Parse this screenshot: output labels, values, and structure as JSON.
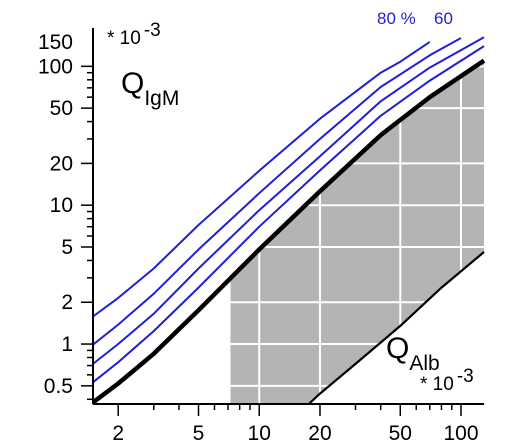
{
  "chart_data": {
    "type": "line",
    "title": "",
    "x_axis": {
      "scale": "log",
      "range": [
        1.5,
        130
      ],
      "tick_labels": [
        {
          "value": 2,
          "label": "2"
        },
        {
          "value": 5,
          "label": "5"
        },
        {
          "value": 10,
          "label": "10"
        },
        {
          "value": 20,
          "label": "20"
        },
        {
          "value": 50,
          "label": "50"
        },
        {
          "value": 100,
          "label": "100"
        }
      ],
      "variable": {
        "main": "Q",
        "sub": "Alb"
      },
      "multiplier": {
        "base": "* 10",
        "exp": "-3"
      }
    },
    "y_axis": {
      "scale": "log",
      "range": [
        0.37,
        160
      ],
      "tick_labels": [
        {
          "value": 0.5,
          "label": "0.5"
        },
        {
          "value": 1,
          "label": "1"
        },
        {
          "value": 2,
          "label": "2"
        },
        {
          "value": 5,
          "label": "5"
        },
        {
          "value": 10,
          "label": "10"
        },
        {
          "value": 20,
          "label": "20"
        },
        {
          "value": 50,
          "label": "50"
        },
        {
          "value": 100,
          "label": "100"
        },
        {
          "value": 150,
          "label": "150"
        }
      ],
      "variable": {
        "main": "Q",
        "sub": "IgM"
      },
      "multiplier": {
        "base": "* 10",
        "exp": "-3"
      }
    },
    "grid": "white grid inside shaded region",
    "colors": {
      "reference_curves": "#1f1fd6",
      "upper_limit": "#000000",
      "lower_limit": "#000000",
      "shaded_region": "#b4b4b4",
      "grid_lines": "#ffffff"
    },
    "series": [
      {
        "name": "80 %",
        "color": "#1f1fd6",
        "points": [
          [
            1.5,
            1.58
          ],
          [
            2,
            2.15
          ],
          [
            3,
            3.5
          ],
          [
            5,
            7.2
          ],
          [
            10,
            17.7
          ],
          [
            20,
            42
          ],
          [
            40,
            90
          ],
          [
            50,
            108
          ],
          [
            70,
            150
          ]
        ]
      },
      {
        "name": "60",
        "color": "#1f1fd6",
        "points": [
          [
            1.5,
            0.99
          ],
          [
            2,
            1.38
          ],
          [
            3,
            2.3
          ],
          [
            5,
            4.8
          ],
          [
            10,
            12.2
          ],
          [
            20,
            30
          ],
          [
            40,
            71
          ],
          [
            70,
            120
          ],
          [
            100,
            160
          ]
        ]
      },
      {
        "color": "#1f1fd6",
        "points": [
          [
            1.5,
            0.72
          ],
          [
            2,
            1.0
          ],
          [
            3,
            1.65
          ],
          [
            5,
            3.5
          ],
          [
            10,
            9.2
          ],
          [
            20,
            22.5
          ],
          [
            40,
            56
          ],
          [
            70,
            98
          ],
          [
            130,
            162
          ]
        ]
      },
      {
        "color": "#1f1fd6",
        "points": [
          [
            1.5,
            0.53
          ],
          [
            2,
            0.74
          ],
          [
            3,
            1.24
          ],
          [
            5,
            2.55
          ],
          [
            10,
            7.0
          ],
          [
            20,
            17.8
          ],
          [
            40,
            44
          ],
          [
            70,
            79
          ],
          [
            130,
            140
          ]
        ]
      },
      {
        "color": "#000000",
        "points": [
          [
            1.5,
            0.38
          ],
          [
            2,
            0.52
          ],
          [
            3,
            0.85
          ],
          [
            5,
            1.75
          ],
          [
            10,
            4.8
          ],
          [
            20,
            12.6
          ],
          [
            40,
            32
          ],
          [
            70,
            60
          ],
          [
            130,
            110
          ]
        ]
      },
      {
        "color": "#000000",
        "points": [
          [
            17.6,
            0.37
          ],
          [
            20,
            0.44
          ],
          [
            30,
            0.72
          ],
          [
            50,
            1.35
          ],
          [
            80,
            2.55
          ],
          [
            130,
            4.6
          ]
        ]
      }
    ],
    "shaded_region": {
      "x_left": 7.2,
      "x_right": 130,
      "upper_bound": "series index 4",
      "lower_bound": "series index 5",
      "grid_x": [
        10,
        20,
        50,
        100
      ],
      "grid_y": [
        0.5,
        1,
        2,
        5,
        10,
        20,
        50,
        100
      ]
    },
    "curve_labels": [
      {
        "text": "80 %",
        "series": 0
      },
      {
        "text": "60",
        "series": 1
      }
    ]
  }
}
